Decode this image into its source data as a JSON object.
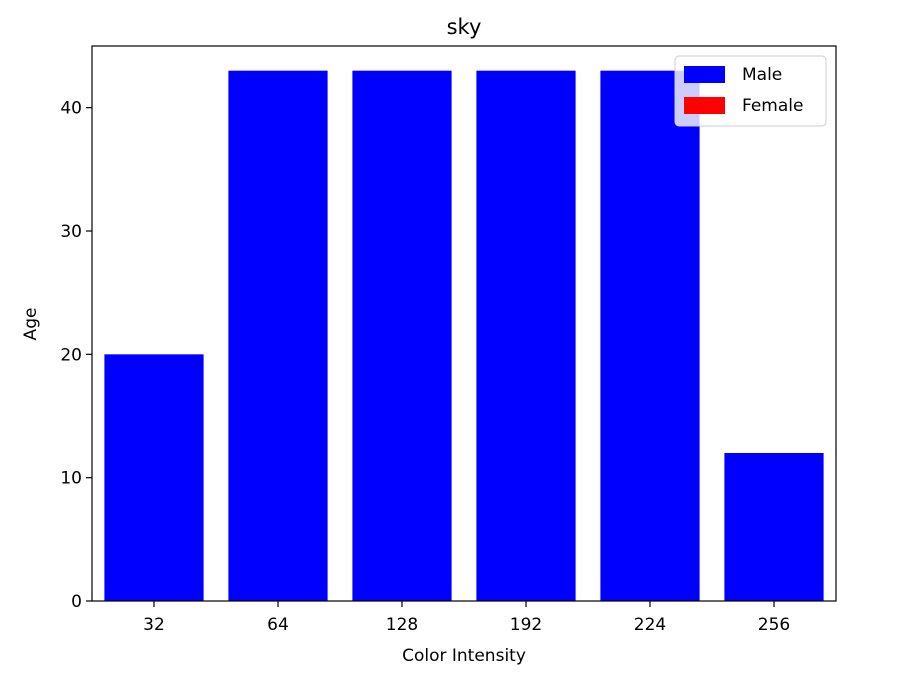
{
  "chart_data": {
    "type": "bar",
    "title": "sky",
    "xlabel": "Color Intensity",
    "ylabel": "Age",
    "categories": [
      "32",
      "64",
      "128",
      "192",
      "224",
      "256"
    ],
    "series": [
      {
        "name": "Male",
        "color": "#0000ff",
        "values": [
          20,
          43,
          43,
          43,
          43,
          12
        ]
      },
      {
        "name": "Female",
        "color": "#ff0000",
        "values": [
          0,
          0,
          0,
          0,
          0,
          0
        ]
      }
    ],
    "ylim": [
      0,
      45
    ],
    "yticks": [
      0,
      10,
      20,
      30,
      40
    ],
    "grid": false,
    "legend_position": "top-right"
  }
}
